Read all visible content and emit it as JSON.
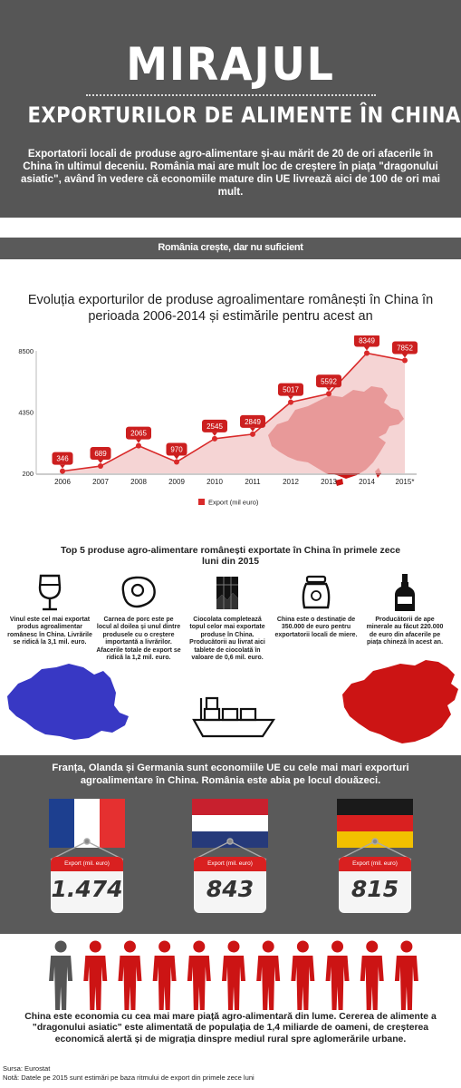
{
  "header": {
    "title": "MIRAJUL",
    "subtitle": "EXPORTURILOR DE ALIMENTE ÎN CHINA",
    "intro": "Exportatorii locali de produse agro-alimentare și-au mărit de 20 de ori afacerile în China în ultimul deceniu. România mai are mult loc de creștere în piața \"dragonului asiatic\", având în vedere că economiile mature din UE livrează aici de 100 de ori mai mult."
  },
  "section_label": "România crește, dar nu suficient",
  "chart_data": {
    "type": "area",
    "title": "Evoluția exporturilor de produse agroalimentare românești în China în perioada 2006-2014 și estimările pentru acest an",
    "categories": [
      "2006",
      "2007",
      "2008",
      "2009",
      "2010",
      "2011",
      "2012",
      "2013",
      "2014",
      "2015*"
    ],
    "series": [
      {
        "name": "Export (mil euro)",
        "values": [
          346,
          689,
          2065,
          970,
          2545,
          2849,
          5017,
          5592,
          8349,
          7852
        ]
      }
    ],
    "yticks": [
      "200",
      "4350",
      "8500"
    ],
    "ylim": [
      200,
      8500
    ],
    "legend": "bottom",
    "grid": false,
    "colors": {
      "line": "#d92a2a",
      "fill": "#f2c6c6",
      "label": "#cc1f1f"
    }
  },
  "top5": {
    "title": "Top 5 produse agro-alimentare românești exportate în China în primele zece luni din 2015",
    "items": [
      {
        "icon": "wine-glass-icon",
        "text": "Vinul este cel mai exportat produs agroalimentar românesc în China. Livrările se ridică la 3,1 mil. euro."
      },
      {
        "icon": "meat-icon",
        "text": "Carnea de porc este pe locul al doilea și unul dintre produsele cu o creștere importantă a livrărilor. Afacerile totale de export se ridică la 1,2 mil. euro."
      },
      {
        "icon": "chocolate-icon",
        "text": "Ciocolata completează topul celor mai exportate produse în China. Producătorii au livrat aici tablete de ciocolată în valoare de 0,6 mil. euro."
      },
      {
        "icon": "honey-jar-icon",
        "text": "China este o destinație de 350.000 de euro pentru exportatorii locali de miere."
      },
      {
        "icon": "bottle-icon",
        "text": "Producătorii de ape minerale au făcut 220.000 de euro din afacerile pe piața chineză în acest an."
      }
    ]
  },
  "eu": {
    "text": "Franța, Olanda și Germania sunt economiile UE cu cele mai mari exporturi agroalimentare în China. România este abia pe locul douăzeci.",
    "tag_label": "Export (mil. euro)",
    "countries": [
      {
        "flag": "france-flag",
        "value": "1.474"
      },
      {
        "flag": "netherlands-flag",
        "value": "843"
      },
      {
        "flag": "germany-flag",
        "value": "815"
      }
    ],
    "colors": {
      "france": [
        "#1d3f8f",
        "#ffffff",
        "#e53030"
      ],
      "netherlands": [
        "#c8202e",
        "#ffffff",
        "#263a7a"
      ],
      "germany": [
        "#1a1a1a",
        "#d92020",
        "#f2c000"
      ]
    }
  },
  "people": {
    "count": 11,
    "highlighted": 1,
    "colors": {
      "grey": "#555555",
      "red": "#cc1414"
    }
  },
  "final_text": "China este economia cu cea mai mare piață agro-alimentară din lume. Cererea de alimente a \"dragonului asiatic\" este alimentată de populația de 1,4 miliarde de oameni, de creșterea economică alertă și de migrația dinspre mediul rural spre aglomerările urbane.",
  "source": "Sursa: Eurostat",
  "note": "Notă: Datele pe 2015 sunt estimări pe baza ritmului de export din primele zece luni"
}
